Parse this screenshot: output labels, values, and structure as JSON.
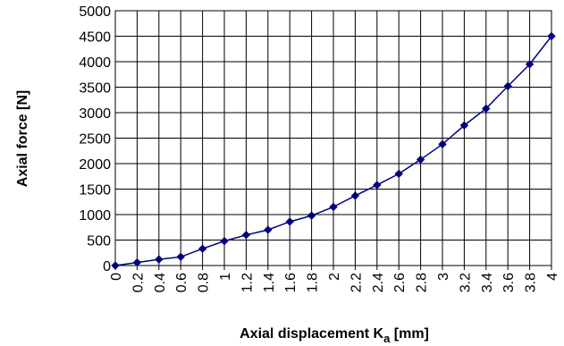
{
  "chart_data": {
    "type": "line",
    "title": "",
    "xlabel": "Axial displacement K",
    "xlabel_sub": "a",
    "xlabel_unit": " [mm]",
    "ylabel": "Axial force [N]",
    "x": [
      0,
      0.2,
      0.4,
      0.6,
      0.8,
      1,
      1.2,
      1.4,
      1.6,
      1.8,
      2,
      2.2,
      2.4,
      2.6,
      2.8,
      3,
      3.2,
      3.4,
      3.6,
      3.8,
      4
    ],
    "x_tick_labels": [
      "0",
      "0.2",
      "0.4",
      "0.6",
      "0.8",
      "1",
      "1.2",
      "1.4",
      "1.6",
      "1.8",
      "2",
      "2.2",
      "2.4",
      "2.6",
      "2.8",
      "3",
      "3.2",
      "3.4",
      "3.6",
      "3.8",
      "4"
    ],
    "y_ticks": [
      0,
      500,
      1000,
      1500,
      2000,
      2500,
      3000,
      3500,
      4000,
      4500,
      5000
    ],
    "ylim": [
      0,
      5000
    ],
    "series": [
      {
        "values": [
          0,
          60,
          120,
          170,
          330,
          480,
          600,
          700,
          860,
          980,
          1150,
          1370,
          1580,
          1800,
          2080,
          2380,
          2750,
          3080,
          3520,
          3950,
          4500
        ]
      }
    ],
    "grid": true,
    "legend": "none",
    "line_color": "#000080",
    "marker": "diamond"
  }
}
